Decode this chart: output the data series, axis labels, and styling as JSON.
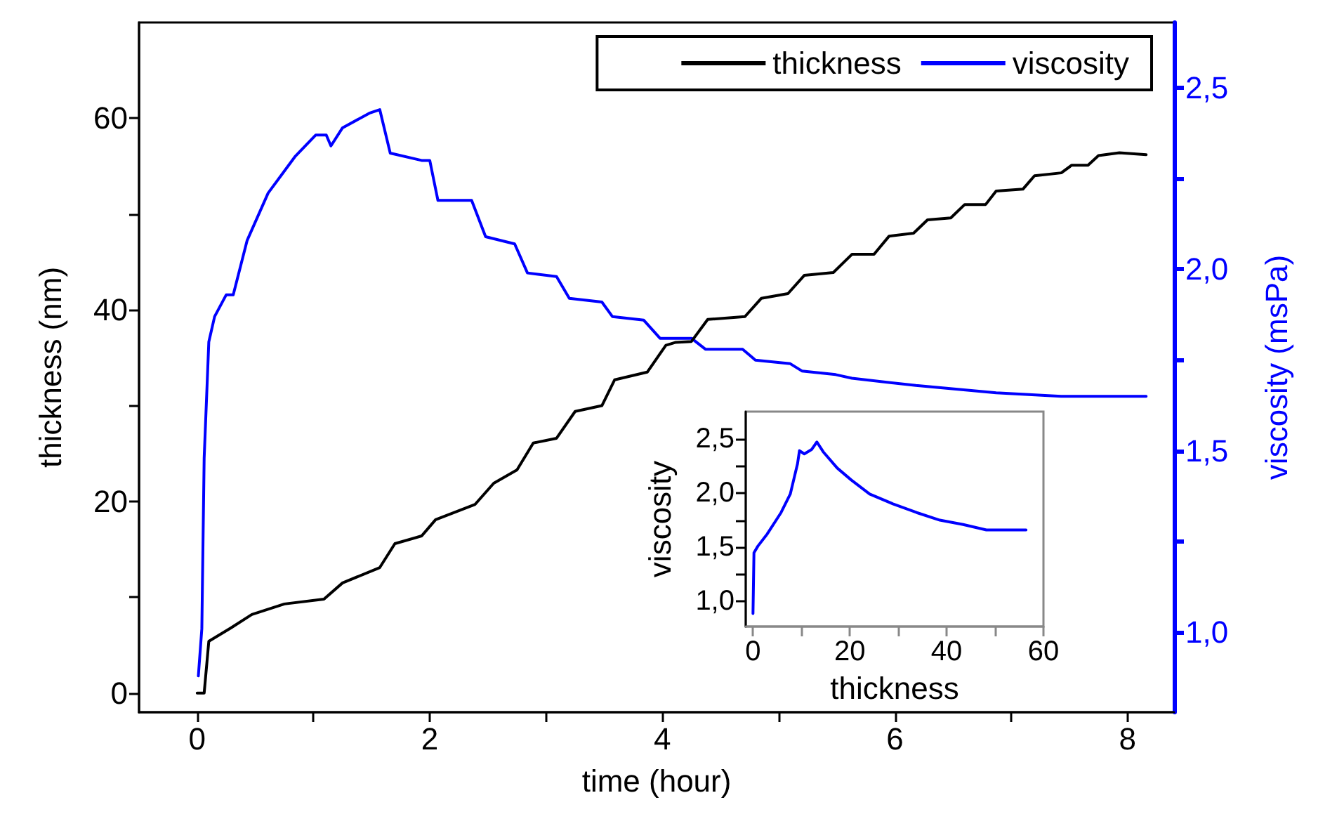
{
  "chart_data": [
    {
      "type": "line",
      "xlabel": "time (hour)",
      "ylabel": "thickness (nm)",
      "y2label": "viscosity (msPa)",
      "legend": "top right",
      "grid": false,
      "xlim": [
        -0.5,
        8.4
      ],
      "xticks": [
        0,
        {
          "value": 1,
          "label": null
        },
        2,
        {
          "value": 3,
          "label": null
        },
        4,
        {
          "value": 5,
          "label": null
        },
        6,
        {
          "value": 7,
          "label": null
        },
        8
      ],
      "ylim": [
        -2,
        70
      ],
      "yticks": [
        0,
        {
          "value": 10,
          "label": null
        },
        20,
        {
          "value": 30,
          "label": null
        },
        40,
        {
          "value": 50,
          "label": null
        },
        60
      ],
      "y2lim": [
        0.78,
        2.68
      ],
      "y2ticks": [
        {
          "value": 1.0,
          "label": "1,0"
        },
        {
          "value": 1.25,
          "label": null
        },
        {
          "value": 1.5,
          "label": "1,5"
        },
        {
          "value": 1.75,
          "label": null
        },
        {
          "value": 2.0,
          "label": "2,0"
        },
        {
          "value": 2.25,
          "label": null
        },
        {
          "value": 2.5,
          "label": "2,5"
        }
      ],
      "series": [
        {
          "name": "thickness",
          "color": "#000000",
          "x": [
            0,
            0.06,
            0.1,
            0.29,
            0.47,
            0.75,
            1.09,
            1.25,
            1.57,
            1.7,
            1.93,
            2.05,
            2.39,
            2.55,
            2.75,
            2.89,
            3.09,
            3.25,
            3.48,
            3.59,
            3.87,
            4.03,
            4.11,
            4.25,
            4.39,
            4.71,
            4.85,
            5.08,
            5.22,
            5.47,
            5.63,
            5.82,
            5.95,
            6.16,
            6.28,
            6.48,
            6.6,
            6.78,
            6.87,
            7.1,
            7.2,
            7.43,
            7.52,
            7.66,
            7.75,
            7.93,
            8.16
          ],
          "values": [
            0,
            0,
            5.4,
            6.8,
            8.2,
            9.3,
            9.8,
            11.5,
            13.1,
            15.6,
            16.4,
            18.1,
            19.7,
            21.9,
            23.3,
            26.1,
            26.6,
            29.4,
            30,
            32.7,
            33.5,
            36.3,
            36.6,
            36.7,
            39,
            39.3,
            41.2,
            41.7,
            43.6,
            43.9,
            45.8,
            45.8,
            47.7,
            48,
            49.4,
            49.6,
            51,
            51,
            52.4,
            52.6,
            54,
            54.3,
            55.1,
            55.1,
            56.1,
            56.4,
            56.2
          ]
        },
        {
          "name": "viscosity",
          "color": "#0000ff",
          "axis": "y2",
          "x": [
            0.01,
            0.04,
            0.06,
            0.1,
            0.15,
            0.25,
            0.31,
            0.43,
            0.61,
            0.84,
            1.02,
            1.11,
            1.15,
            1.25,
            1.48,
            1.57,
            1.66,
            1.93,
            2.0,
            2.07,
            2.36,
            2.48,
            2.73,
            2.84,
            3.09,
            3.2,
            3.48,
            3.57,
            3.84,
            3.98,
            4.11,
            4.25,
            4.37,
            4.69,
            4.8,
            5.1,
            5.2,
            5.49,
            5.63,
            6.18,
            6.87,
            7.43,
            8.16
          ],
          "values": [
            0.88,
            1.01,
            1.48,
            1.8,
            1.87,
            1.93,
            1.93,
            2.08,
            2.21,
            2.31,
            2.37,
            2.37,
            2.34,
            2.39,
            2.43,
            2.44,
            2.32,
            2.3,
            2.3,
            2.19,
            2.19,
            2.09,
            2.07,
            1.99,
            1.98,
            1.92,
            1.91,
            1.87,
            1.86,
            1.81,
            1.81,
            1.81,
            1.78,
            1.78,
            1.75,
            1.74,
            1.72,
            1.71,
            1.7,
            1.68,
            1.66,
            1.65,
            1.65
          ]
        }
      ]
    },
    {
      "type": "line",
      "xlabel": "thickness",
      "ylabel": "viscosity",
      "grid": false,
      "xlim": [
        -1.5,
        60
      ],
      "xticks": [
        0,
        {
          "value": 10,
          "label": null
        },
        20,
        {
          "value": 30,
          "label": null
        },
        40,
        {
          "value": 50,
          "label": null
        },
        60
      ],
      "ylim": [
        0.77,
        2.75
      ],
      "yticks": [
        {
          "value": 1.0,
          "label": "1,0"
        },
        {
          "value": 1.25,
          "label": null
        },
        {
          "value": 1.5,
          "label": "1,5"
        },
        {
          "value": 1.75,
          "label": null
        },
        {
          "value": 2.0,
          "label": "2,0"
        },
        {
          "value": 2.25,
          "label": null
        },
        {
          "value": 2.5,
          "label": "2,5"
        }
      ],
      "series": [
        {
          "color": "#0000ff",
          "x": [
            0,
            0.2,
            1,
            2.9,
            5.8,
            7.7,
            9.2,
            9.6,
            10.6,
            12.1,
            13.2,
            14.5,
            17.4,
            20.3,
            24.1,
            28.9,
            33.8,
            38.6,
            43.4,
            48.2,
            53,
            56.4
          ],
          "values": [
            0.89,
            1.45,
            1.51,
            1.62,
            1.82,
            1.99,
            2.27,
            2.39,
            2.36,
            2.4,
            2.47,
            2.38,
            2.23,
            2.12,
            1.99,
            1.9,
            1.82,
            1.75,
            1.71,
            1.66,
            1.66,
            1.66
          ]
        }
      ]
    }
  ]
}
